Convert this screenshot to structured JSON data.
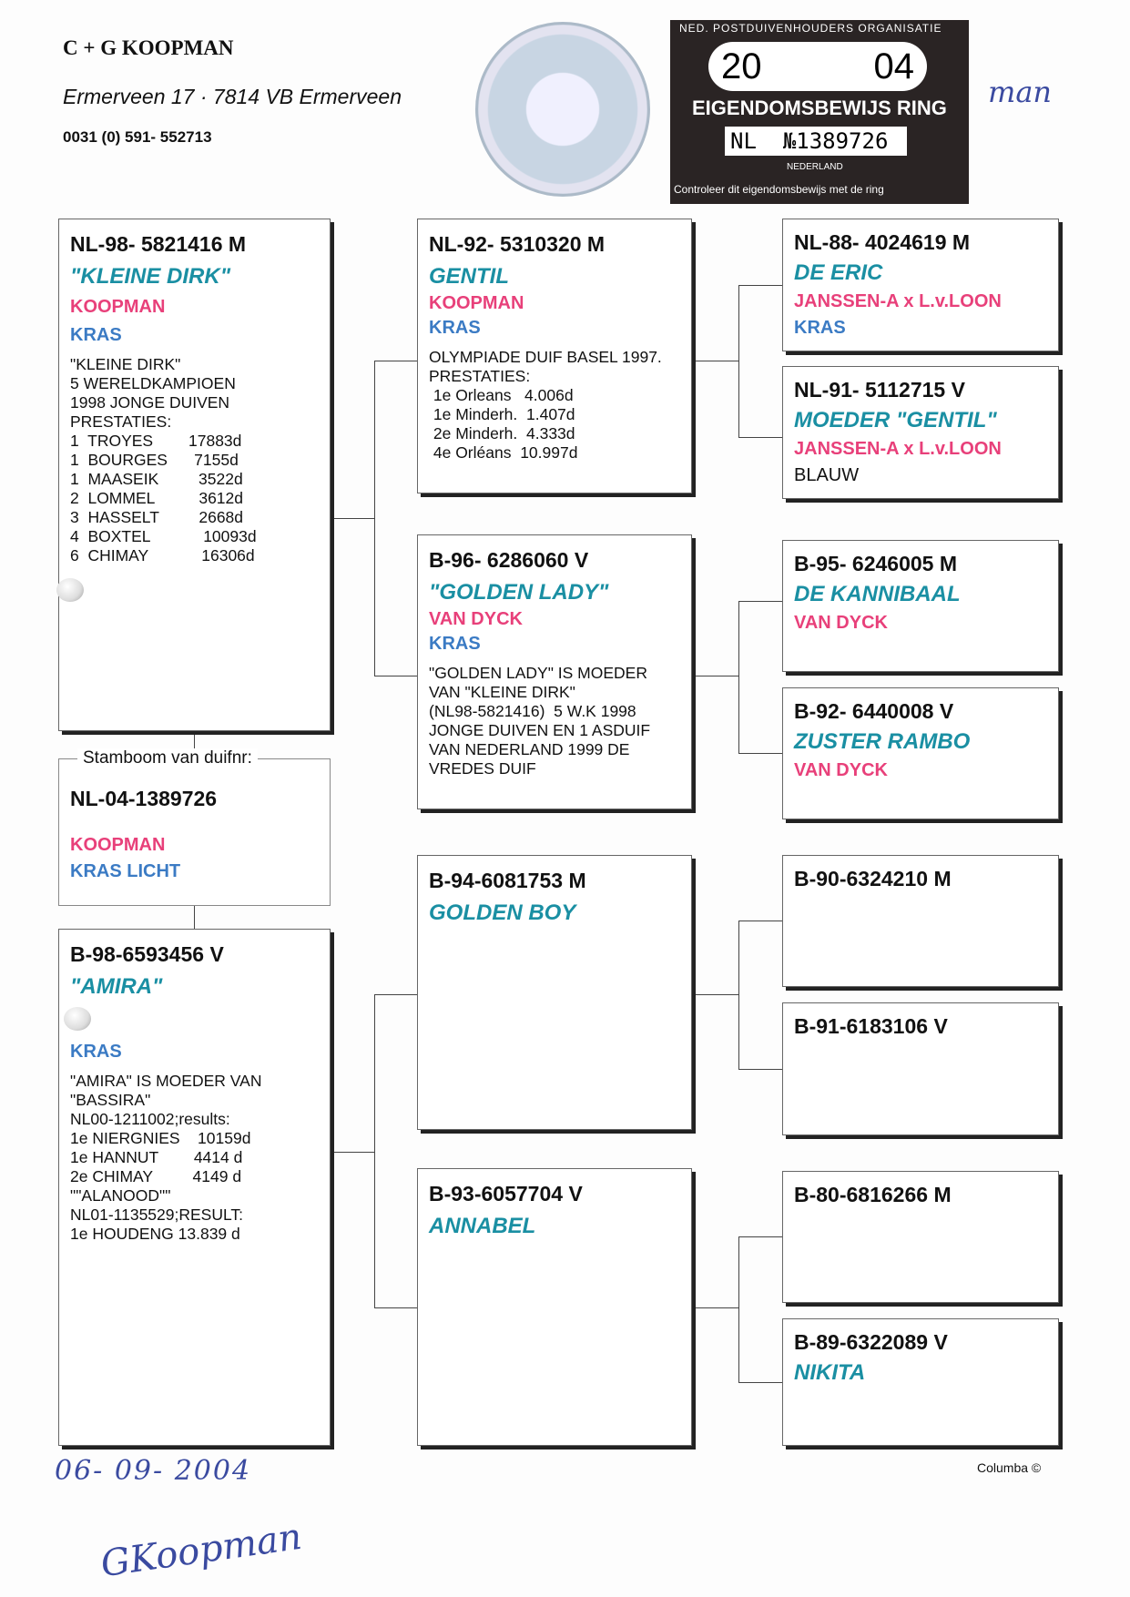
{
  "header": {
    "breeder": "C + G KOOPMAN",
    "address": "Ermerveen 17  ·  7814 VB Ermerveen",
    "phone": "0031 (0) 591- 552713"
  },
  "stamp": {
    "org": "NED. POSTDUIVENHOUDERS ORGANISATIE",
    "year_left": "20",
    "year_right": "04",
    "label": "EIGENDOMSBEWIJS RING",
    "country": "NL",
    "number": "№1389726",
    "nation": "NEDERLAND",
    "footer": "Controleer dit eigendomsbewijs met de ring"
  },
  "colors": {
    "name": "#1a8fa3",
    "breeder": "#e8407a",
    "color": "#3b7bc4"
  },
  "subject": {
    "label": "Stamboom van duifnr:",
    "id": "NL-04-1389726",
    "breeder": "KOOPMAN",
    "color": "KRAS LICHT"
  },
  "father": {
    "id": "NL-98- 5821416 M",
    "name": "\"KLEINE DIRK\"",
    "breeder": "KOOPMAN",
    "color": "KRAS",
    "notes": "\"KLEINE DIRK\"\n5 WERELDKAMPIOEN\n1998 JONGE DUIVEN\nPRESTATIES:\n1  TROYES        17883d\n1  BOURGES      7155d\n1  MAASEIK         3522d\n2  LOMMEL          3612d\n3  HASSELT         2668d\n4  BOXTEL            10093d\n6  CHIMAY            16306d"
  },
  "mother": {
    "id": "B-98-6593456 V",
    "name": "\"AMIRA\"",
    "color": "KRAS",
    "notes": "\"AMIRA\" IS MOEDER VAN\n\"BASSIRA\"\nNL00-1211002;results:\n1e NIERGNIES    10159d\n1e HANNUT        4414 d\n2e CHIMAY         4149 d\n\"\"ALANOOD\"\"\nNL01-1135529;RESULT:\n1e HOUDENG 13.839 d"
  },
  "ff": {
    "id": "NL-92- 5310320 M",
    "name": "GENTIL",
    "breeder": "KOOPMAN",
    "color": "KRAS",
    "notes": "OLYMPIADE DUIF BASEL 1997.\nPRESTATIES:\n 1e Orleans   4.006d\n 1e Minderh.  1.407d\n 2e Minderh.  4.333d\n 4e Orléans  10.997d"
  },
  "fm": {
    "id": "B-96- 6286060 V",
    "name": "\"GOLDEN LADY\"",
    "breeder": "VAN DYCK",
    "color": "KRAS",
    "notes": "\"GOLDEN LADY\" IS MOEDER\nVAN \"KLEINE DIRK\"\n(NL98-5821416)  5 W.K 1998\nJONGE DUIVEN EN 1 ASDUIF\nVAN NEDERLAND 1999 DE\nVREDES DUIF"
  },
  "mf": {
    "id": "B-94-6081753 M",
    "name": "GOLDEN BOY"
  },
  "mm": {
    "id": "B-93-6057704 V",
    "name": "ANNABEL"
  },
  "gen3": [
    {
      "id": "NL-88- 4024619 M",
      "name": "DE ERIC",
      "breeder": "JANSSEN-A x L.v.LOON",
      "color": "KRAS"
    },
    {
      "id": "NL-91- 5112715 V",
      "name": "MOEDER \"GENTIL\"",
      "breeder": "JANSSEN-A x L.v.LOON",
      "color_plain": "BLAUW"
    },
    {
      "id": "B-95- 6246005 M",
      "name": "DE KANNIBAAL",
      "breeder": "VAN DYCK"
    },
    {
      "id": "B-92- 6440008 V",
      "name": "ZUSTER RAMBO",
      "breeder": "VAN DYCK"
    },
    {
      "id": "B-90-6324210 M"
    },
    {
      "id": "B-91-6183106 V"
    },
    {
      "id": "B-80-6816266 M"
    },
    {
      "id": "B-89-6322089 V",
      "name": "NIKITA"
    }
  ],
  "footer": {
    "date": "06- 09- 2004",
    "signature": "GKoopman",
    "signature_stamp": "man",
    "credit": "Columba ©"
  }
}
